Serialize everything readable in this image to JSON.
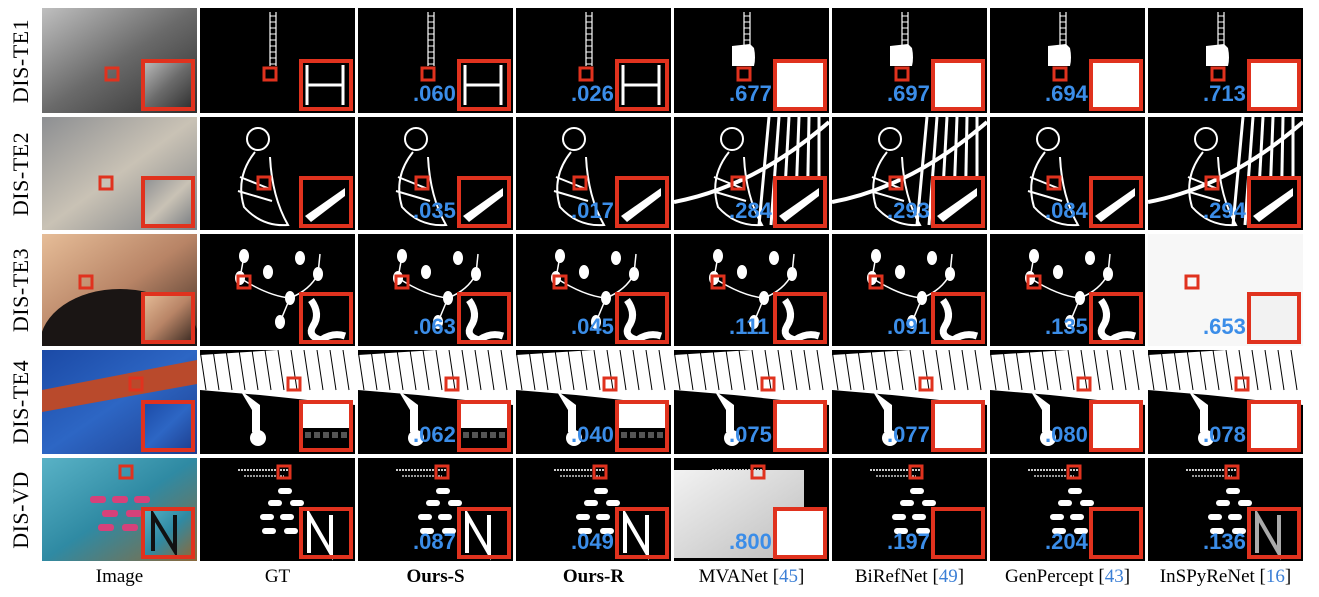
{
  "rows": [
    {
      "label": "DIS-TE1",
      "scores": [
        "",
        ".060",
        ".026",
        ".677",
        ".697",
        ".694",
        ".713"
      ]
    },
    {
      "label": "DIS-TE2",
      "scores": [
        "",
        ".035",
        ".017",
        ".284",
        ".293",
        ".084",
        ".294"
      ]
    },
    {
      "label": "DIS-TE3",
      "scores": [
        "",
        ".063",
        ".045",
        ".111",
        ".091",
        ".135",
        ".653"
      ]
    },
    {
      "label": "DIS-TE4",
      "scores": [
        "",
        ".062",
        ".040",
        ".075",
        ".077",
        ".080",
        ".078"
      ]
    },
    {
      "label": "DIS-VD",
      "scores": [
        "",
        ".087",
        ".049",
        ".800",
        ".197",
        ".204",
        ".136"
      ]
    }
  ],
  "columns": [
    {
      "label": "Image",
      "bold": false,
      "ref": ""
    },
    {
      "label": "GT",
      "bold": false,
      "ref": ""
    },
    {
      "label": "Ours-S",
      "bold": true,
      "ref": ""
    },
    {
      "label": "Ours-R",
      "bold": true,
      "ref": ""
    },
    {
      "label": "MVANet",
      "bold": false,
      "ref": "45"
    },
    {
      "label": "BiRefNet",
      "bold": false,
      "ref": "49"
    },
    {
      "label": "GenPercept",
      "bold": false,
      "ref": "43"
    },
    {
      "label": "InSPyReNet",
      "bold": false,
      "ref": "16"
    }
  ],
  "colors": {
    "highlight_box": "#e0321e",
    "score_text": "#3b8de8",
    "reference_link": "#3b7fd6",
    "mask_foreground": "#ffffff",
    "mask_background": "#000000"
  }
}
